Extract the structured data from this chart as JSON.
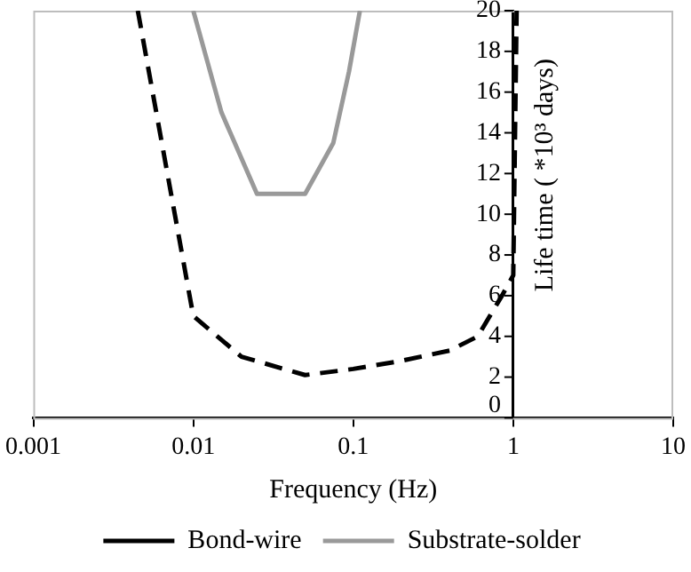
{
  "chart_data": {
    "type": "line",
    "xlabel": "Frequency (Hz)",
    "ylabel": "Life time ( *10³ days)",
    "log": "x",
    "xlim": [
      0.001,
      10
    ],
    "xticks": [
      0.001,
      0.01,
      0.1,
      1,
      10
    ],
    "ylim": [
      0,
      20
    ],
    "yticks": [
      0,
      2,
      4,
      6,
      8,
      10,
      12,
      14,
      16,
      18,
      20
    ],
    "grid": false,
    "legend": "bottom",
    "marker": "none",
    "series": [
      {
        "name": "Bond-wire",
        "color": "#000000",
        "line_style": "dashed",
        "x": [
          0.0045,
          0.01,
          0.02,
          0.05,
          0.1,
          0.2,
          0.4,
          0.6,
          0.85,
          1,
          1.05
        ],
        "values": [
          20,
          5,
          3,
          2.1,
          2.4,
          2.8,
          3.3,
          4,
          6,
          7,
          20
        ]
      },
      {
        "name": "Substrate-solder",
        "color": "#999999",
        "line_style": "solid",
        "x": [
          0.01,
          0.015,
          0.025,
          0.05,
          0.075,
          0.094,
          0.11
        ],
        "values": [
          20,
          15,
          11,
          11,
          13.5,
          17,
          20
        ]
      }
    ]
  }
}
